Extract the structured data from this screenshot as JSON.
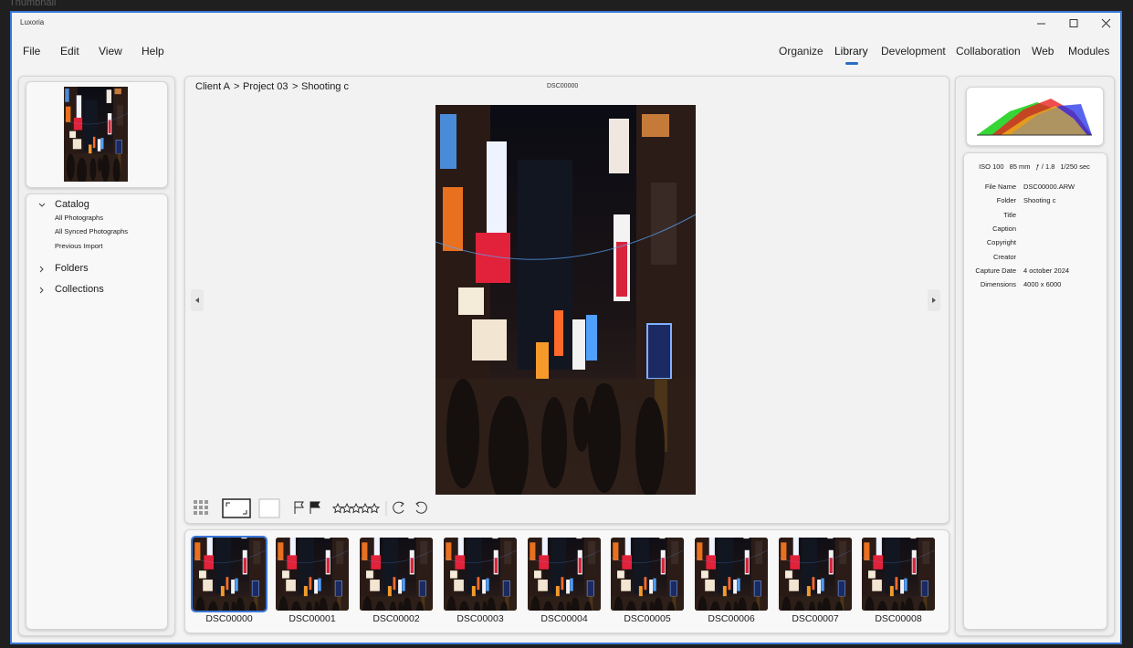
{
  "top_label": "Thumbnail",
  "window": {
    "title": "Luxoria"
  },
  "menu": [
    "File",
    "Edit",
    "View",
    "Help"
  ],
  "tabs": [
    {
      "label": "Organize",
      "active": false
    },
    {
      "label": "Library",
      "active": true
    },
    {
      "label": "Development",
      "active": false
    },
    {
      "label": "Collaboration",
      "active": false
    },
    {
      "label": "Web",
      "active": false
    },
    {
      "label": "Modules",
      "active": false
    }
  ],
  "breadcrumb": [
    "Client A",
    "Project 03",
    "Shooting c"
  ],
  "breadcrumb_separator": ">",
  "viewer": {
    "image_name": "DSC00000"
  },
  "tree": [
    {
      "label": "Catalog",
      "expanded": true,
      "children": [
        "All Photographs",
        "All Synced Photographs",
        "Previous Import"
      ]
    },
    {
      "label": "Folders",
      "expanded": false,
      "children": []
    },
    {
      "label": "Collections",
      "expanded": false,
      "children": []
    }
  ],
  "exif": [
    "ISO 100",
    "85 mm",
    "ƒ / 1.8",
    "1/250 sec"
  ],
  "metadata": [
    {
      "label": "File Name",
      "value": "DSC00000.ARW"
    },
    {
      "label": "Folder",
      "value": "Shooting c"
    },
    {
      "label": "Title",
      "value": null
    },
    {
      "label": "Caption",
      "value": null
    },
    {
      "label": "Copyright",
      "value": null
    },
    {
      "label": "Creator",
      "value": null
    },
    {
      "label": "Capture Date",
      "value": "4 october 2024"
    },
    {
      "label": "Dimensions",
      "value": "4000 x 6000"
    }
  ],
  "filmstrip": [
    {
      "label": "DSC00000",
      "selected": true
    },
    {
      "label": "DSC00001",
      "selected": false
    },
    {
      "label": "DSC00002",
      "selected": false
    },
    {
      "label": "DSC00003",
      "selected": false
    },
    {
      "label": "DSC00004",
      "selected": false
    },
    {
      "label": "DSC00005",
      "selected": false
    },
    {
      "label": "DSC00006",
      "selected": false
    },
    {
      "label": "DSC00007",
      "selected": false
    },
    {
      "label": "DSC00008",
      "selected": false
    }
  ]
}
